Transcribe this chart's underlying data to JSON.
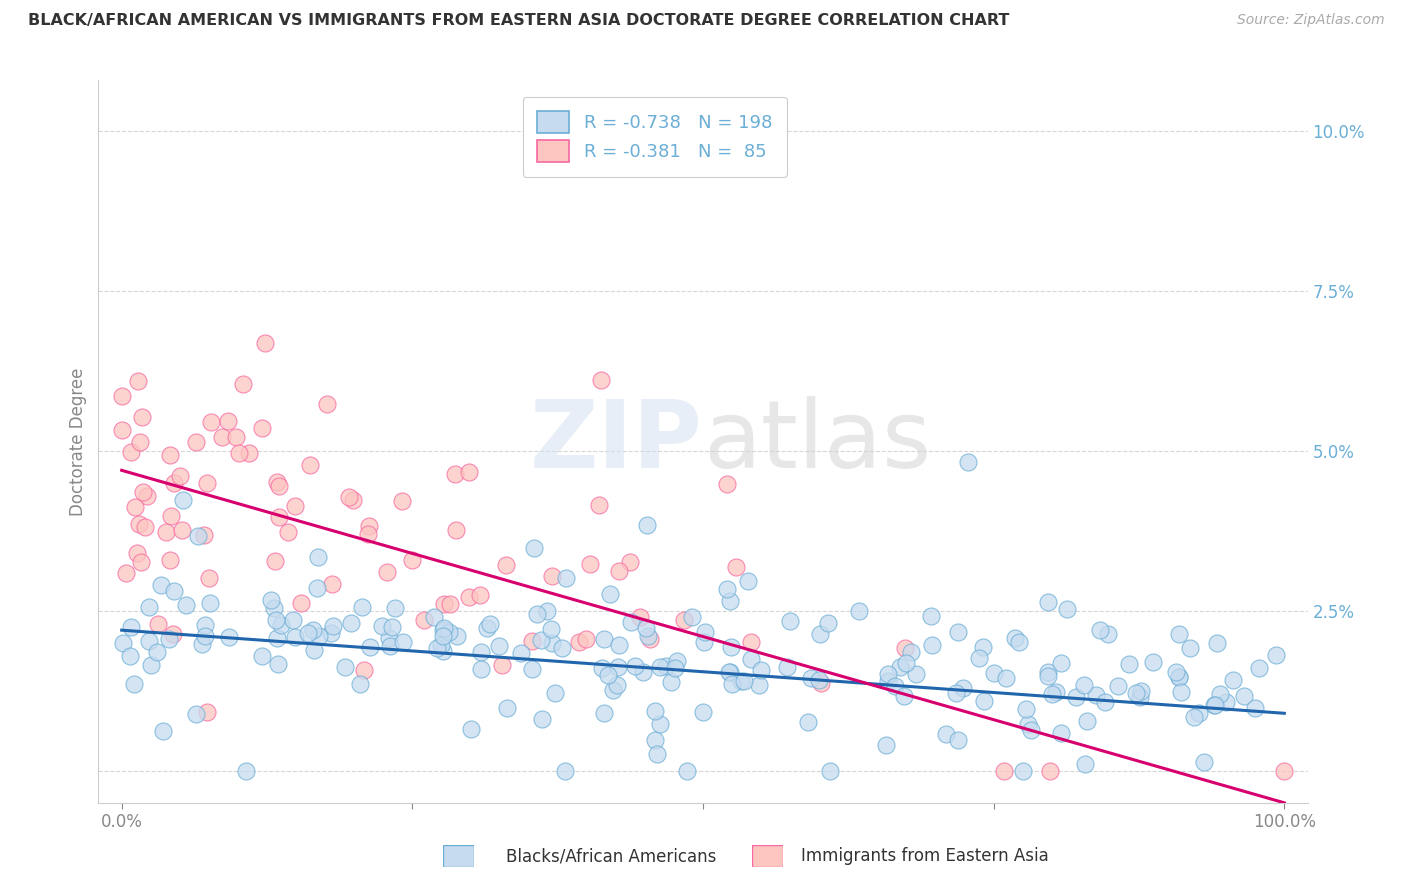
{
  "title": "BLACK/AFRICAN AMERICAN VS IMMIGRANTS FROM EASTERN ASIA DOCTORATE DEGREE CORRELATION CHART",
  "source": "Source: ZipAtlas.com",
  "ylabel": "Doctorate Degree",
  "blue_color": "#6baed6",
  "pink_color": "#f768a1",
  "blue_line_color": "#2166ac",
  "pink_line_color": "#d6006e",
  "blue_fill_color": "#c6dbef",
  "pink_fill_color": "#fcc5c0",
  "blue_edge_color": "#6baed6",
  "pink_edge_color": "#f768a1",
  "blue_R": -0.738,
  "blue_N": 198,
  "pink_R": -0.381,
  "pink_N": 85,
  "blue_intercept": 2.2,
  "blue_slope": -0.013,
  "pink_intercept": 4.7,
  "pink_slope": -0.052,
  "background_color": "#ffffff",
  "grid_color": "#cccccc",
  "ytick_color": "#6baed6",
  "xtick_color": "#888888"
}
